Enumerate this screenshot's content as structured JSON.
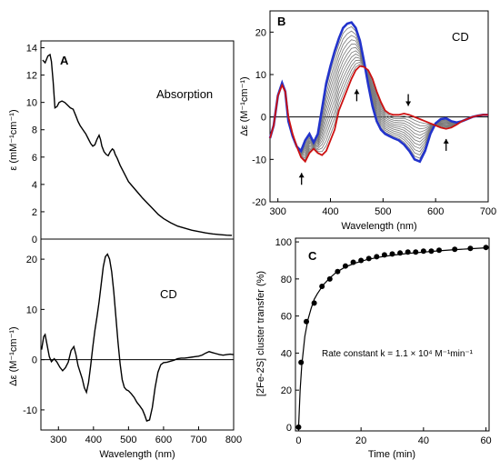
{
  "chart_data": [
    {
      "id": "A_absorption",
      "type": "line",
      "panel_label": "A",
      "annotation": "Absorption",
      "xlabel": "",
      "ylabel": "ε (mM⁻¹cm⁻¹)",
      "xlim": [
        250,
        800
      ],
      "ylim": [
        0,
        14.5
      ],
      "yticks": [
        0,
        2,
        4,
        6,
        8,
        10,
        12,
        14
      ],
      "series": [
        {
          "color": "#000000",
          "x": [
            255,
            262,
            270,
            276,
            280,
            285,
            290,
            296,
            302,
            310,
            318,
            326,
            334,
            342,
            350,
            356,
            362,
            370,
            378,
            386,
            392,
            398,
            404,
            410,
            416,
            420,
            424,
            430,
            436,
            442,
            448,
            454,
            458,
            462,
            468,
            476,
            484,
            492,
            500,
            510,
            520,
            530,
            540,
            555,
            570,
            585,
            600,
            620,
            640,
            660,
            680,
            700,
            720,
            740,
            760,
            780,
            795
          ],
          "y": [
            13.1,
            12.9,
            13.4,
            13.5,
            13.0,
            11.5,
            9.6,
            9.7,
            10.0,
            10.1,
            10.0,
            9.8,
            9.6,
            9.5,
            9.0,
            8.6,
            8.3,
            8.0,
            7.7,
            7.3,
            7.0,
            6.8,
            6.9,
            7.3,
            7.6,
            7.3,
            6.8,
            6.4,
            6.2,
            6.1,
            6.4,
            6.6,
            6.5,
            6.2,
            5.9,
            5.4,
            5.0,
            4.6,
            4.2,
            3.9,
            3.6,
            3.3,
            3.0,
            2.6,
            2.2,
            1.8,
            1.5,
            1.2,
            0.95,
            0.8,
            0.65,
            0.55,
            0.45,
            0.38,
            0.33,
            0.29,
            0.27
          ]
        }
      ]
    },
    {
      "id": "A_cd",
      "type": "line",
      "annotation": "CD",
      "xlabel": "Wavelength (nm)",
      "ylabel": "Δε (M⁻¹cm⁻¹)",
      "xlim": [
        250,
        800
      ],
      "ylim": [
        -14,
        24
      ],
      "xticks": [
        300,
        400,
        500,
        600,
        700,
        800
      ],
      "yticks": [
        -10,
        0,
        10,
        20
      ],
      "series": [
        {
          "color": "#000000",
          "x": [
            252,
            258,
            262,
            268,
            274,
            280,
            288,
            296,
            304,
            312,
            320,
            328,
            336,
            344,
            350,
            356,
            362,
            368,
            374,
            380,
            386,
            392,
            398,
            404,
            410,
            416,
            422,
            428,
            434,
            440,
            446,
            452,
            458,
            464,
            470,
            476,
            482,
            488,
            494,
            500,
            508,
            516,
            524,
            532,
            540,
            546,
            552,
            560,
            568,
            576,
            584,
            592,
            600,
            610,
            620,
            630,
            640,
            650,
            660,
            670,
            680,
            690,
            700,
            710,
            720,
            730,
            740,
            750,
            760,
            770,
            780,
            790,
            800
          ],
          "y": [
            2.0,
            4.6,
            5.0,
            2.8,
            0.6,
            -0.4,
            0.2,
            -0.5,
            -1.5,
            -2.2,
            -1.6,
            -0.5,
            1.8,
            2.6,
            1.0,
            -1.2,
            -2.5,
            -3.8,
            -5.6,
            -6.5,
            -4.5,
            -1.2,
            2.5,
            5.8,
            8.5,
            11.5,
            15.0,
            18.5,
            20.5,
            21.0,
            20.0,
            17.5,
            13.5,
            8.5,
            3.5,
            -0.8,
            -4.0,
            -5.5,
            -6.0,
            -6.2,
            -6.8,
            -7.5,
            -8.5,
            -9.2,
            -10.0,
            -11.0,
            -12.2,
            -12.0,
            -9.5,
            -5.5,
            -2.5,
            -1.0,
            -0.6,
            -0.5,
            -0.3,
            -0.1,
            0.2,
            0.3,
            0.3,
            0.4,
            0.5,
            0.6,
            0.7,
            0.9,
            1.3,
            1.6,
            1.4,
            1.2,
            1.0,
            0.9,
            1.0,
            1.1,
            1.0
          ]
        }
      ]
    },
    {
      "id": "B_cd",
      "type": "line",
      "panel_label": "B",
      "annotation": "CD",
      "xlabel": "Wavelength (nm)",
      "ylabel": "Δε (M⁻¹cm⁻¹)",
      "xlim": [
        285,
        700
      ],
      "ylim": [
        -20,
        25
      ],
      "xticks": [
        300,
        400,
        500,
        600,
        700
      ],
      "yticks": [
        -20,
        -10,
        0,
        10,
        20
      ],
      "x": [
        285,
        292,
        300,
        308,
        314,
        320,
        328,
        336,
        344,
        352,
        360,
        368,
        376,
        384,
        392,
        400,
        408,
        416,
        424,
        432,
        440,
        448,
        456,
        464,
        472,
        480,
        488,
        496,
        504,
        512,
        520,
        530,
        540,
        550,
        560,
        570,
        580,
        590,
        600,
        610,
        620,
        630,
        640,
        650,
        660,
        670,
        680,
        690,
        700
      ],
      "series": [
        {
          "color": "#2233cc",
          "y": [
            -5.0,
            -2.0,
            5.0,
            8.0,
            6.0,
            -1.0,
            -4.5,
            -7.0,
            -8.0,
            -5.5,
            -4.0,
            -6.0,
            -4.0,
            2.0,
            8.0,
            12.0,
            15.5,
            18.5,
            21.0,
            22.0,
            22.3,
            21.0,
            18.0,
            13.0,
            7.5,
            2.5,
            -1.0,
            -3.0,
            -4.0,
            -4.5,
            -5.0,
            -5.5,
            -6.5,
            -8.0,
            -10.0,
            -10.5,
            -8.0,
            -4.0,
            -1.5,
            -0.5,
            -0.3,
            -1.0,
            -1.3,
            -1.0,
            -0.5,
            0.0,
            0.3,
            0.5,
            0.5
          ]
        },
        {
          "color": "#cc1111",
          "y": [
            -5.0,
            -2.0,
            5.0,
            7.5,
            6.0,
            0.0,
            -4.0,
            -7.0,
            -9.5,
            -10.5,
            -8.5,
            -7.5,
            -8.5,
            -9.0,
            -8.0,
            -5.5,
            -3.0,
            1.5,
            4.0,
            6.5,
            9.0,
            11.0,
            12.0,
            11.8,
            11.0,
            9.0,
            6.0,
            3.5,
            1.5,
            0.8,
            0.5,
            0.5,
            0.8,
            0.5,
            0.0,
            -0.5,
            -1.0,
            -1.5,
            -2.0,
            -2.5,
            -2.8,
            -2.5,
            -1.8,
            -1.0,
            -0.5,
            0.0,
            0.3,
            0.5,
            0.5
          ]
        }
      ],
      "intermediate_series_count": 12,
      "intermediate_color": "#777777"
    },
    {
      "id": "C_kinetics",
      "type": "scatter",
      "panel_label": "C",
      "annotation": "Rate constant k = 1.1 × 10⁴ M⁻¹min⁻¹",
      "xlabel": "Time (min)",
      "ylabel": "[2Fe-2S] cluster transfer (%)",
      "xlim": [
        -1,
        61
      ],
      "ylim": [
        -2,
        102
      ],
      "xticks": [
        0,
        20,
        40,
        60
      ],
      "yticks": [
        0,
        20,
        40,
        60,
        80,
        100
      ],
      "points": {
        "x": [
          0,
          0.8,
          2.5,
          5,
          7.5,
          10,
          12.5,
          15,
          17.5,
          20,
          22.5,
          25,
          27.5,
          30,
          32.5,
          35,
          37.5,
          40,
          42.5,
          45,
          50,
          55,
          60
        ],
        "y": [
          0,
          35,
          57,
          67,
          76,
          80,
          84,
          87,
          89,
          90,
          91,
          92,
          93,
          93.5,
          94,
          94.5,
          94.5,
          95,
          95,
          95.5,
          96,
          96.5,
          97
        ]
      },
      "fit": {
        "x": [
          0,
          0.5,
          1,
          2,
          3,
          4,
          5,
          6,
          8,
          10,
          12,
          15,
          18,
          22,
          26,
          30,
          35,
          40,
          45,
          50,
          55,
          60
        ],
        "y": [
          0,
          20,
          33,
          49,
          58,
          64,
          69,
          72,
          77,
          80.5,
          83.5,
          86.5,
          88.5,
          90.5,
          91.8,
          92.8,
          93.8,
          94.5,
          95.2,
          95.8,
          96.3,
          96.8
        ]
      }
    }
  ]
}
